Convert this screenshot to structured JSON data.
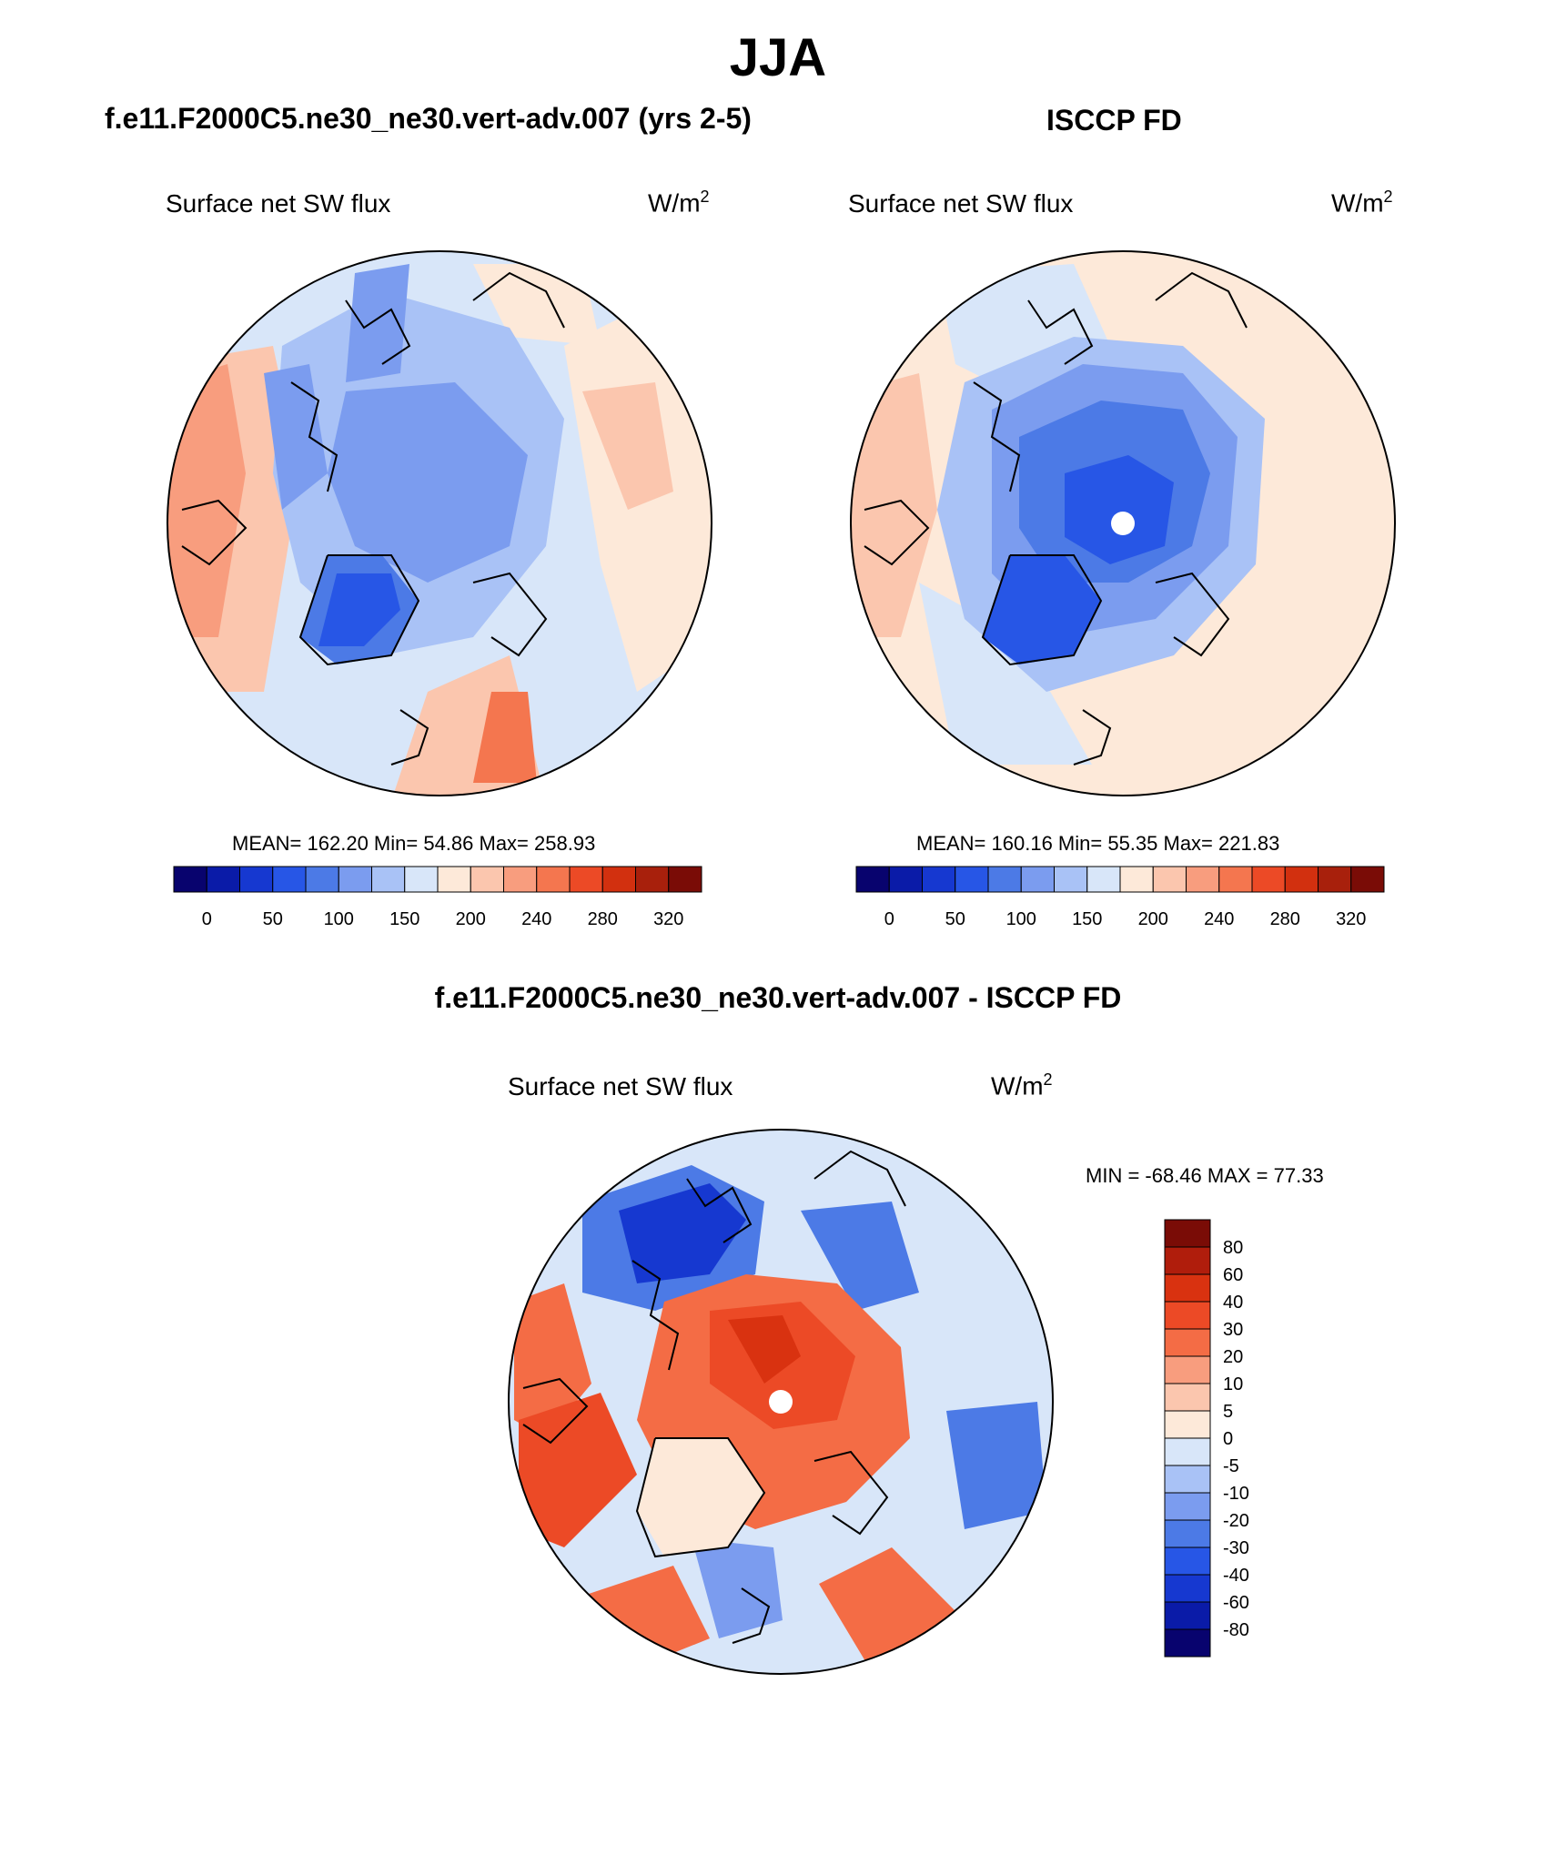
{
  "figure": {
    "season_title": "JJA",
    "model_title": "f.e11.F2000C5.ne30_ne30.vert-adv.007 (yrs 2-5)",
    "obs_title": "ISCCP FD",
    "diff_title": "f.e11.F2000C5.ne30_ne30.vert-adv.007 - ISCCP FD"
  },
  "panels": [
    {
      "id": "model",
      "variable_label": "Surface net SW flux",
      "units_base": "W/m",
      "units_exp": "2",
      "stats": {
        "mean": "162.20",
        "min": "54.86",
        "max": "258.93"
      },
      "stats_text": "MEAN= 162.20  Min=  54.86  Max= 258.93",
      "pole_mask": false
    },
    {
      "id": "obs",
      "variable_label": "Surface net SW flux",
      "units_base": "W/m",
      "units_exp": "2",
      "stats": {
        "mean": "160.16",
        "min": "55.35",
        "max": "221.83"
      },
      "stats_text": "MEAN= 160.16  Min=  55.35  Max= 221.83",
      "pole_mask": true
    },
    {
      "id": "diff",
      "variable_label": "Surface net SW flux",
      "units_base": "W/m",
      "units_exp": "2",
      "stats": {
        "min": "-68.46",
        "max": "77.33"
      },
      "stats_text": "MIN = -68.46 MAX =  77.33",
      "pole_mask": true
    }
  ],
  "colorbars": {
    "absolute": {
      "orientation": "horizontal",
      "colors": [
        "#08036e",
        "#0a1ba8",
        "#1638d0",
        "#2756e6",
        "#4c7ae6",
        "#7b9cef",
        "#a9c2f6",
        "#d8e6f9",
        "#fde9d9",
        "#fbc6ae",
        "#f89d7e",
        "#f4764f",
        "#ec4a26",
        "#d2300f",
        "#a8200c",
        "#7a0c06"
      ],
      "tick_labels": [
        "0",
        "50",
        "100",
        "150",
        "200",
        "240",
        "280",
        "320"
      ]
    },
    "difference": {
      "orientation": "vertical",
      "colors_top_to_bottom": [
        "#7a0c06",
        "#b01d0c",
        "#d93210",
        "#ec4a26",
        "#f46c45",
        "#f89d7e",
        "#fbc6ae",
        "#fde9d9",
        "#d8e6f9",
        "#a9c2f6",
        "#7b9cef",
        "#4c7ae6",
        "#2756e6",
        "#1638d0",
        "#0a1ba8",
        "#08036e"
      ],
      "tick_labels": [
        "80",
        "60",
        "40",
        "30",
        "20",
        "10",
        "5",
        "0",
        "-5",
        "-10",
        "-20",
        "-30",
        "-40",
        "-60",
        "-80"
      ]
    }
  },
  "colors": {
    "frame": "#000000",
    "land_outline": "#000000"
  }
}
